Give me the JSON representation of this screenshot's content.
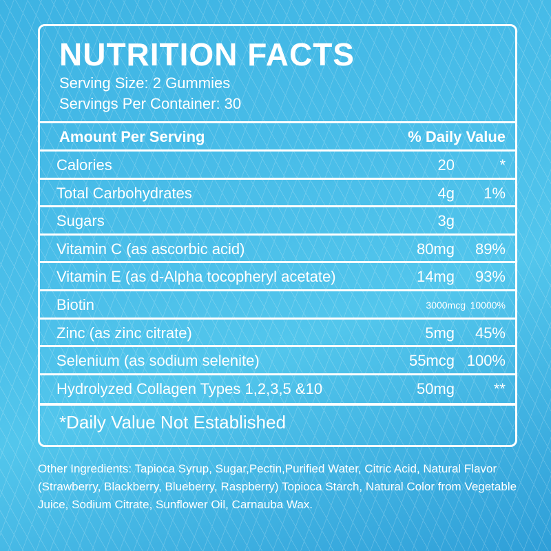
{
  "title": "NUTRITION FACTS",
  "serving_size": "Serving Size: 2 Gummies",
  "servings_per_container": "Servings Per Container: 30",
  "header": {
    "amount": "Amount Per Serving",
    "dv": "% Daily Value"
  },
  "rows": [
    {
      "name": "Calories",
      "amount": "20",
      "dv": "*"
    },
    {
      "name": "Total Carbohydrates",
      "amount": "4g",
      "dv": "1%"
    },
    {
      "name": "Sugars",
      "amount": "3g",
      "dv": ""
    },
    {
      "name": "Vitamin C (as ascorbic acid)",
      "amount": "80mg",
      "dv": "89%"
    },
    {
      "name": "Vitamin E (as d-Alpha tocopheryl acetate)",
      "amount": "14mg",
      "dv": "93%"
    },
    {
      "name": "Biotin",
      "amount": "3000mcg",
      "dv": "10000%"
    },
    {
      "name": "Zinc (as zinc citrate)",
      "amount": "5mg",
      "dv": "45%"
    },
    {
      "name": "Selenium (as sodium selenite)",
      "amount": "55mcg",
      "dv": "100%"
    },
    {
      "name": "Hydrolyzed Collagen Types 1,2,3,5 &10",
      "amount": "50mg",
      "dv": "**"
    }
  ],
  "footnote": "*Daily Value Not Established",
  "other_ingredients": "Other Ingredients: Tapioca Syrup, Sugar,Pectin,Purified Water, Citric Acid, Natural Flavor (Strawberry, Blackberry, Blueberry, Raspberry) Topioca Starch, Natural Color from Vegetable Juice, Sodium Citrate, Sunflower Oil, Carnauba Wax."
}
